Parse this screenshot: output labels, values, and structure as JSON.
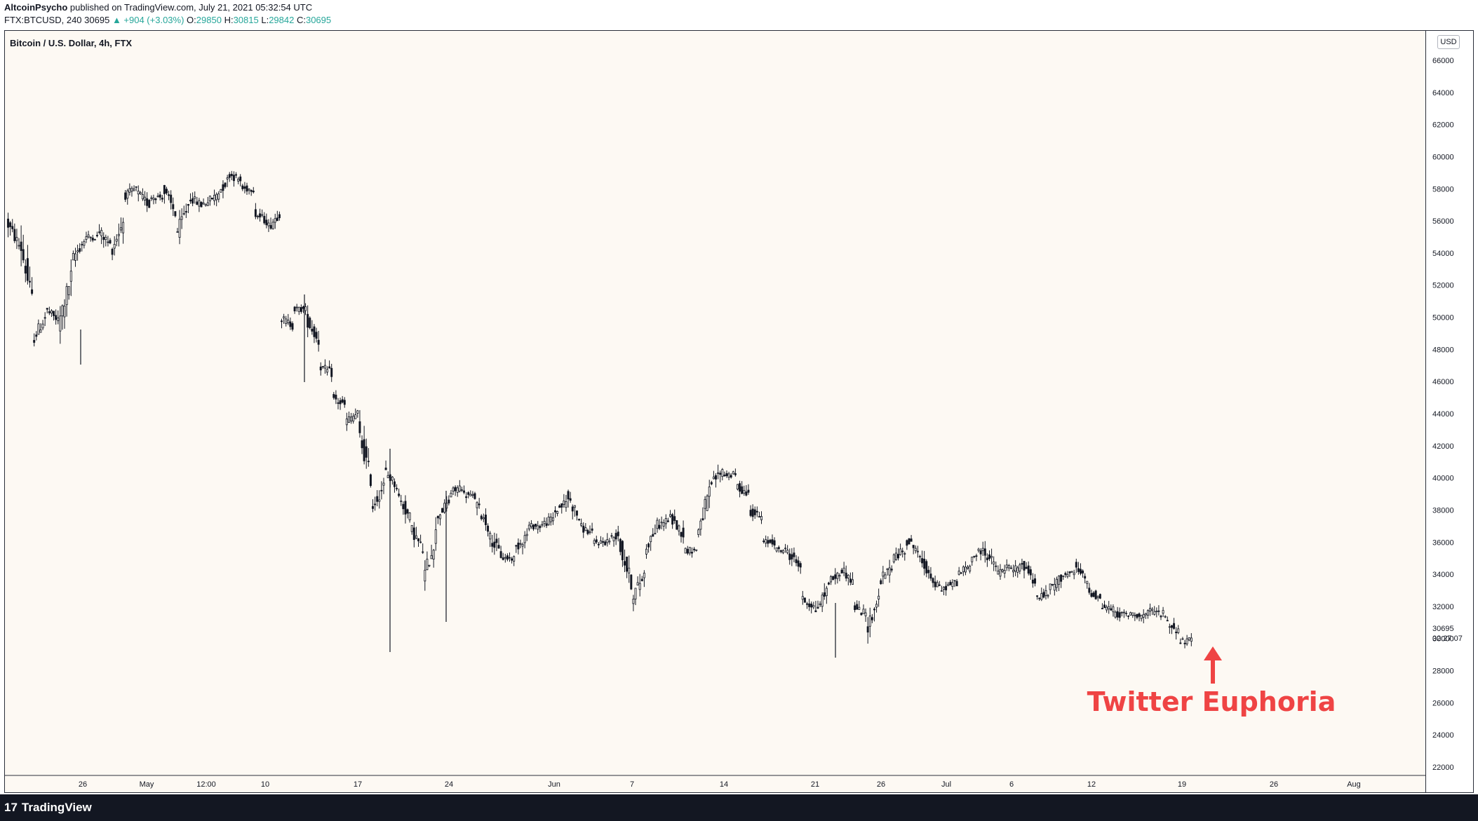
{
  "header": {
    "author": "AltcoinPsycho",
    "published": "published on TradingView.com, July 21, 2021 05:32:54 UTC",
    "symbol_line_prefix": "FTX:BTCUSD, 240",
    "last": "30695",
    "change": "▲ +904 (+3.03%)",
    "o_label": "O:",
    "o_value": "29850",
    "h_label": "H:",
    "h_value": "30815",
    "l_label": "L:",
    "l_value": "29842",
    "c_label": "C:",
    "c_value": "30695"
  },
  "chart_title": "Bitcoin / U.S. Dollar, 4h, FTX",
  "currency_badge": "USD",
  "price_label": "30695",
  "countdown": "02:27:07",
  "annotation": "Twitter Euphoria",
  "footer_brand": "TradingView",
  "colors": {
    "background": "#fdf9f3",
    "candle": "#131722",
    "annotation": "#ef4444",
    "header_value": "#26a69a",
    "footer": "#131722"
  },
  "chart_data": {
    "type": "candlestick",
    "title": "Bitcoin / U.S. Dollar, 4h, FTX",
    "interval": "4h",
    "currency": "USD",
    "y_ticks": [
      22000,
      24000,
      26000,
      28000,
      30000,
      32000,
      34000,
      36000,
      38000,
      40000,
      42000,
      44000,
      46000,
      48000,
      50000,
      52000,
      54000,
      56000,
      58000,
      60000,
      62000,
      64000,
      66000
    ],
    "ylim": [
      21500,
      67000
    ],
    "x_ticks": [
      "26",
      "May",
      "12:00",
      "10",
      "17",
      "24",
      "Jun",
      "7",
      "14",
      "21",
      "26",
      "Jul",
      "6",
      "12",
      "19",
      "26",
      "Aug"
    ],
    "series": [
      {
        "name": "BTCUSD",
        "points": [
          [
            "2021-04-21",
            55500,
            56000
          ],
          [
            "2021-04-22",
            54500,
            55000
          ],
          [
            "2021-04-23",
            51000,
            48500
          ],
          [
            "2021-04-24",
            50000,
            50500
          ],
          [
            "2021-04-25",
            49800,
            49500
          ],
          [
            "2021-04-26",
            52500,
            53500
          ],
          [
            "2021-04-27",
            54800,
            55000
          ],
          [
            "2021-04-28",
            55000,
            55500
          ],
          [
            "2021-04-29",
            54500,
            54000
          ],
          [
            "2021-04-30",
            56000,
            57500
          ],
          [
            "2021-05-01",
            58000,
            57800
          ],
          [
            "2021-05-02",
            57000,
            57500
          ],
          [
            "2021-05-03",
            57500,
            58000
          ],
          [
            "2021-05-04",
            56500,
            55000
          ],
          [
            "2021-05-05",
            57000,
            57500
          ],
          [
            "2021-05-06",
            57000,
            57000
          ],
          [
            "2021-05-07",
            57500,
            57500
          ],
          [
            "2021-05-08",
            58500,
            59000
          ],
          [
            "2021-05-09",
            58500,
            58000
          ],
          [
            "2021-05-10",
            58000,
            56500
          ],
          [
            "2021-05-11",
            56000,
            55500
          ],
          [
            "2021-05-12",
            56500,
            50000
          ],
          [
            "2021-05-13",
            49500,
            50500
          ],
          [
            "2021-05-14",
            50500,
            50000
          ],
          [
            "2021-05-15",
            48500,
            47000
          ],
          [
            "2021-05-16",
            46500,
            45000
          ],
          [
            "2021-05-17",
            44500,
            43500
          ],
          [
            "2021-05-18",
            44000,
            43000
          ],
          [
            "2021-05-19",
            40000,
            38000
          ],
          [
            "2021-05-20",
            39500,
            40500
          ],
          [
            "2021-05-21",
            39500,
            39000
          ],
          [
            "2021-05-22",
            37500,
            37000
          ],
          [
            "2021-05-23",
            35500,
            33500
          ],
          [
            "2021-05-24",
            36500,
            37500
          ],
          [
            "2021-05-25",
            38500,
            39000
          ],
          [
            "2021-05-26",
            39500,
            39000
          ],
          [
            "2021-05-27",
            38800,
            38500
          ],
          [
            "2021-05-28",
            37000,
            36500
          ],
          [
            "2021-05-29",
            35200,
            35000
          ],
          [
            "2021-05-30",
            35000,
            35500
          ],
          [
            "2021-05-31",
            36500,
            37000
          ],
          [
            "2021-06-01",
            37000,
            37000
          ],
          [
            "2021-06-02",
            37500,
            37800
          ],
          [
            "2021-06-03",
            38500,
            39000
          ],
          [
            "2021-06-04",
            37500,
            37000
          ],
          [
            "2021-06-05",
            36500,
            36000
          ],
          [
            "2021-06-06",
            36000,
            36000
          ],
          [
            "2021-06-07",
            36500,
            36000
          ],
          [
            "2021-06-08",
            33500,
            32500
          ],
          [
            "2021-06-09",
            34000,
            35500
          ],
          [
            "2021-06-10",
            37000,
            37000
          ],
          [
            "2021-06-11",
            37500,
            37500
          ],
          [
            "2021-06-12",
            36500,
            35500
          ],
          [
            "2021-06-13",
            35500,
            36500
          ],
          [
            "2021-06-14",
            39000,
            39500
          ],
          [
            "2021-06-15",
            40500,
            40200
          ],
          [
            "2021-06-16",
            40200,
            39500
          ],
          [
            "2021-06-17",
            39000,
            38000
          ],
          [
            "2021-06-18",
            37500,
            36000
          ],
          [
            "2021-06-19",
            36000,
            35500
          ],
          [
            "2021-06-20",
            35500,
            35300
          ],
          [
            "2021-06-21",
            34500,
            32500
          ],
          [
            "2021-06-22",
            32000,
            31500
          ],
          [
            "2021-06-23",
            33000,
            33500
          ],
          [
            "2021-06-24",
            34000,
            34500
          ],
          [
            "2021-06-25",
            33500,
            32000
          ],
          [
            "2021-06-26",
            31500,
            30500
          ],
          [
            "2021-06-27",
            32500,
            33500
          ],
          [
            "2021-06-28",
            34500,
            35000
          ],
          [
            "2021-06-29",
            35500,
            36200
          ],
          [
            "2021-06-30",
            35500,
            35000
          ],
          [
            "2021-07-01",
            34000,
            33500
          ],
          [
            "2021-07-02",
            33000,
            33200
          ],
          [
            "2021-07-03",
            33500,
            34000
          ],
          [
            "2021-07-04",
            34500,
            35000
          ],
          [
            "2021-07-05",
            35500,
            35500
          ],
          [
            "2021-07-06",
            34500,
            34000
          ],
          [
            "2021-07-07",
            34500,
            34200
          ],
          [
            "2021-07-08",
            34500,
            34800
          ],
          [
            "2021-07-09",
            33500,
            32500
          ],
          [
            "2021-07-10",
            32800,
            33000
          ],
          [
            "2021-07-11",
            33800,
            34000
          ],
          [
            "2021-07-12",
            34000,
            34500
          ],
          [
            "2021-07-13",
            33500,
            33000
          ],
          [
            "2021-07-14",
            32500,
            32000
          ],
          [
            "2021-07-15",
            31800,
            31500
          ],
          [
            "2021-07-16",
            31500,
            31500
          ],
          [
            "2021-07-17",
            31500,
            31300
          ],
          [
            "2021-07-18",
            31700,
            31700
          ],
          [
            "2021-07-19",
            31500,
            31000
          ],
          [
            "2021-07-20",
            30500,
            29800
          ],
          [
            "2021-07-21",
            29850,
            30695
          ]
        ]
      }
    ]
  }
}
